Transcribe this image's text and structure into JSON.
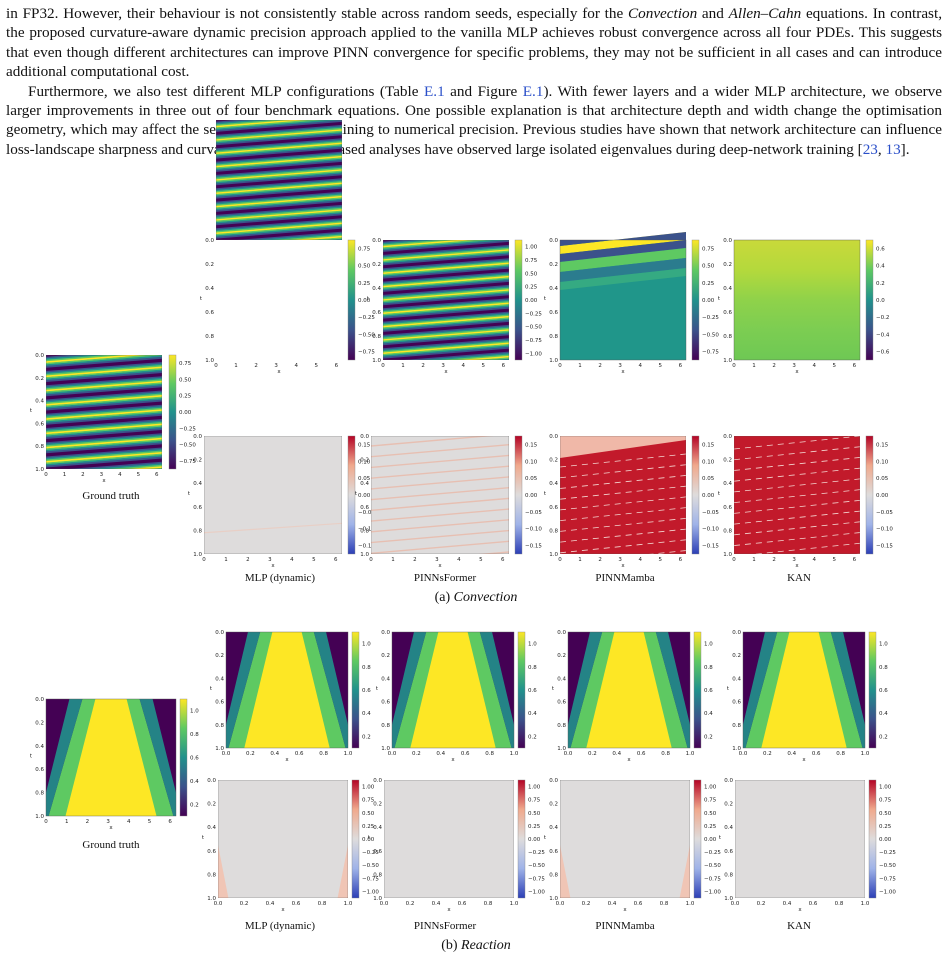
{
  "body_text": {
    "p1_a": "in FP32. However, their behaviour is not consistently stable across random seeds, especially for the ",
    "p1_conv": "Convection",
    "p1_b": " and",
    "p1_allen": "Allen–Cahn",
    "p1_c": " equations. In contrast, the proposed curvature-aware dynamic precision approach applied to the vanilla MLP achieves robust convergence across all four PDEs. This suggests that even though different architectures can improve PINN convergence for specific problems, they may not be sufficient in all cases and can introduce additional computational cost.",
    "p2_a": "Furthermore, we also test different MLP configurations (Table ",
    "p2_tab": "E.1",
    "p2_b": " and Figure ",
    "p2_fig": "E.1",
    "p2_c": "). With fewer layers and a wider MLP architecture, we observe larger improvements in three out of four benchmark equations. One possible explanation is that architecture depth and width change the optimisation geometry, which may affect the sensitivity of PINN training to numerical precision. Previous studies have shown that network architecture can influence loss-landscape sharpness and curvature, and Hessian-based analyses have observed large isolated eigenvalues during deep-network training [",
    "p2_ref1": "23",
    "p2_sep": ", ",
    "p2_ref2": "13",
    "p2_d": "]."
  },
  "figure": {
    "model_labels": [
      "MLP (dynamic)",
      "PINNsFormer",
      "PINNMamba",
      "KAN"
    ],
    "ground_truth_label": "Ground truth",
    "axis_x_label": "x",
    "axis_t_label": "t",
    "sub_a_prefix": "(a) ",
    "sub_a_name": "Convection",
    "sub_b_prefix": "(b) ",
    "sub_b_name": "Reaction",
    "colors": {
      "viridis": [
        "#440154",
        "#3b528b",
        "#21918c",
        "#5ec962",
        "#fde725"
      ],
      "rdbu": [
        "#2c3fb6",
        "#9fb3e8",
        "#dedcdc",
        "#f0a98d",
        "#b40426"
      ]
    },
    "conv_t_ticks": [
      "0.0",
      "0.2",
      "0.4",
      "0.6",
      "0.8",
      "1.0"
    ],
    "conv_x_ticks": [
      "0",
      "1",
      "2",
      "3",
      "4",
      "5",
      "6"
    ],
    "react_x_ticks": [
      "0.0",
      "0.2",
      "0.4",
      "0.6",
      "0.8",
      "1.0"
    ],
    "colorbars": {
      "gt_conv": [
        "0.75",
        "0.50",
        "0.25",
        "0.00",
        "−0.25",
        "−0.50",
        "−0.75"
      ],
      "conv_pred_mlp": [
        "0.75",
        "0.50",
        "0.25",
        "0.00",
        "−0.25",
        "−0.50",
        "−0.75"
      ],
      "conv_pred_former": [
        "1.00",
        "0.75",
        "0.50",
        "0.25",
        "0.00",
        "−0.25",
        "−0.50",
        "−0.75",
        "−1.00"
      ],
      "conv_pred_mamba": [
        "0.75",
        "0.50",
        "0.25",
        "0.00",
        "−0.25",
        "−0.50",
        "−0.75"
      ],
      "conv_pred_kan": [
        "0.6",
        "0.4",
        "0.2",
        "0.0",
        "−0.2",
        "−0.4",
        "−0.6"
      ],
      "conv_err": [
        "0.15",
        "0.10",
        "0.05",
        "0.00",
        "−0.05",
        "−0.10",
        "−0.15"
      ],
      "react_pred": [
        "1.0",
        "0.8",
        "0.6",
        "0.4",
        "0.2"
      ],
      "react_err": [
        "1.00",
        "0.75",
        "0.50",
        "0.25",
        "0.00",
        "−0.25",
        "−0.50",
        "−0.75",
        "−1.00"
      ]
    }
  }
}
